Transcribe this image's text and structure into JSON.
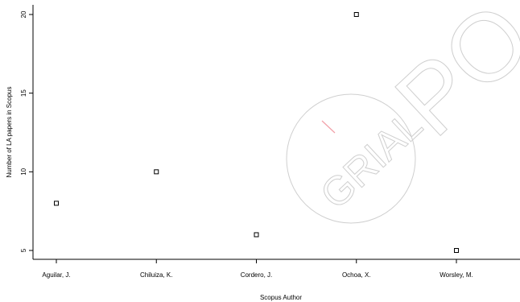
{
  "chart_data": {
    "type": "scatter",
    "categories": [
      "Aguilar, J.",
      "Chiluiza, K.",
      "Cordero, J.",
      "Ochoa, X.",
      "Worsley, M."
    ],
    "values": [
      8,
      10,
      6,
      20,
      5
    ],
    "yticks": [
      5,
      10,
      15,
      20
    ],
    "ylim": [
      5,
      20
    ],
    "xlabel": "Scopus Author",
    "ylabel": "Number of LA papers in Scopus",
    "marker": "square",
    "grid": false,
    "legend": null
  },
  "watermark": {
    "text": "GRIAL",
    "secondary_text": "PO",
    "stroke_color": "#cfcfcf",
    "accent_color": "#f2a0a8"
  }
}
